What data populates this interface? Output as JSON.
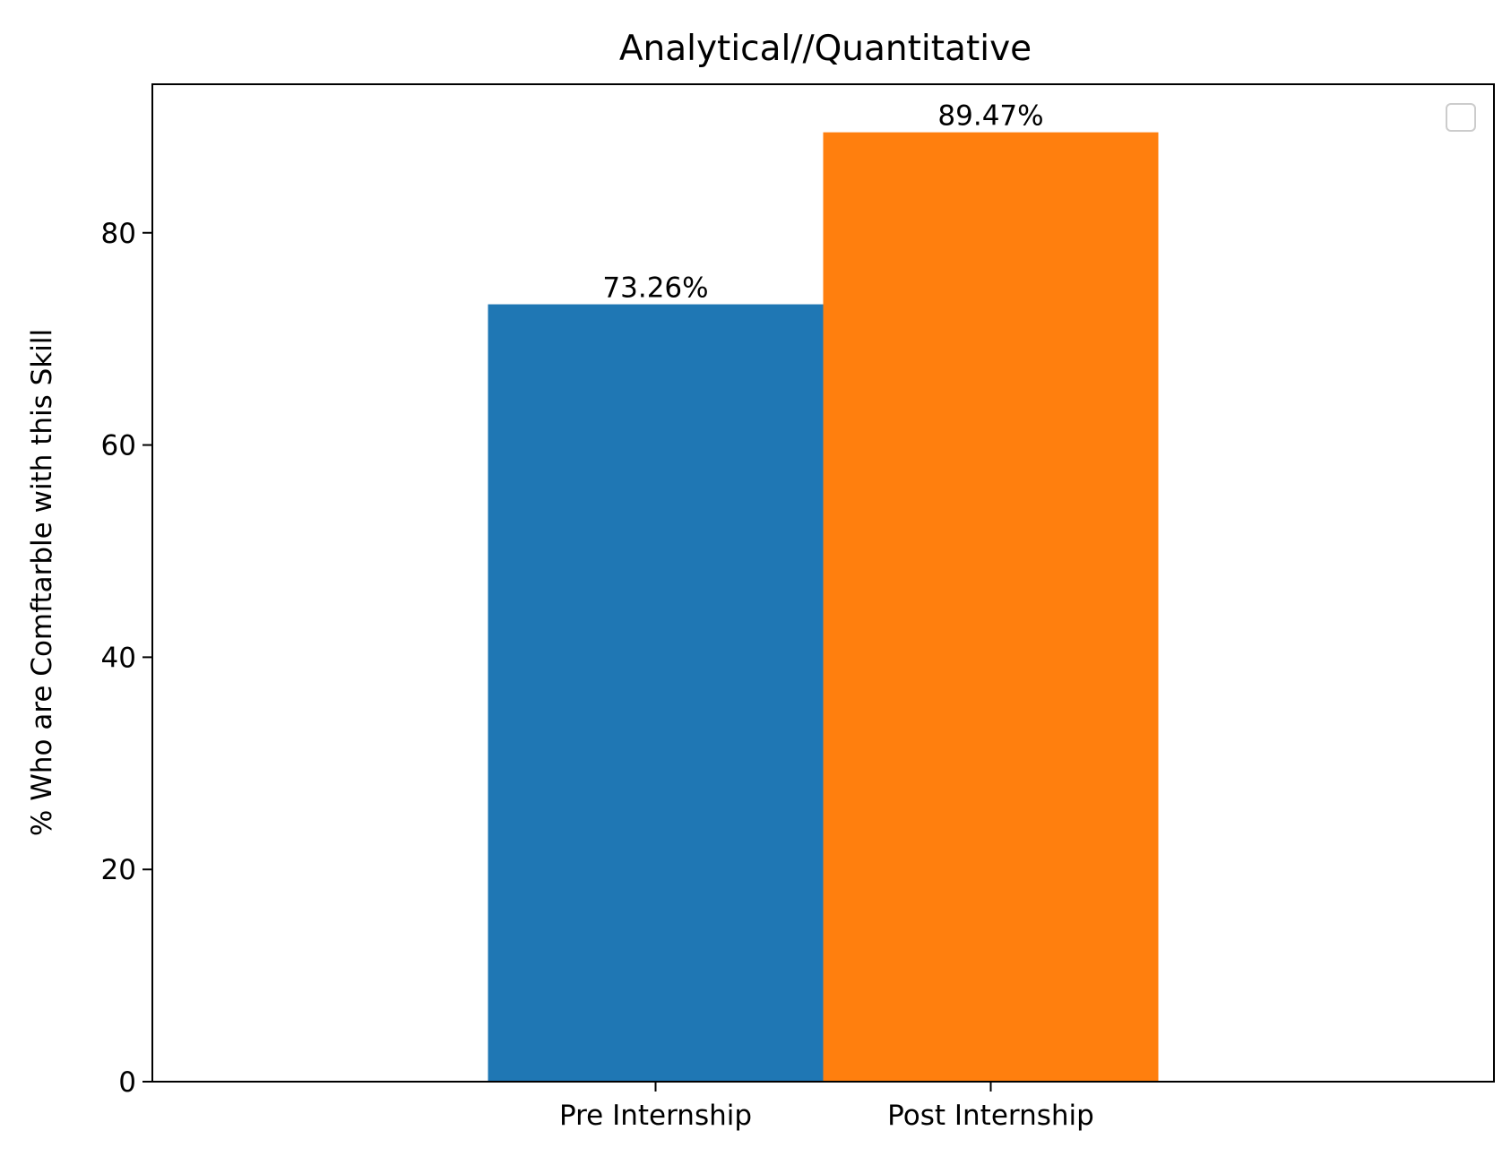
{
  "chart_data": {
    "type": "bar",
    "title": "Analytical//Quantitative",
    "xlabel": "",
    "ylabel": "% Who are Comftarble with this Skill",
    "categories": [
      "Pre Internship",
      "Post Internship"
    ],
    "values": [
      73.26,
      89.47
    ],
    "value_labels": [
      "73.26%",
      "89.47%"
    ],
    "colors": [
      "#1f77b4",
      "#ff7f0e"
    ],
    "ylim": [
      0,
      94
    ],
    "yticks": [
      0,
      20,
      40,
      60,
      80
    ],
    "grid": false,
    "legend": {
      "placement": "top-right",
      "entries": []
    }
  }
}
